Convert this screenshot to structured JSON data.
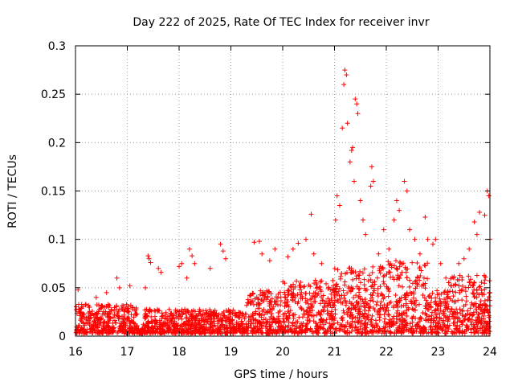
{
  "chart_data": {
    "type": "scatter",
    "title": "Day 222 of 2025, Rate Of TEC Index for receiver invr",
    "xlabel": "GPS time / hours",
    "ylabel": "ROTI / TECUs",
    "xlim": [
      16,
      24
    ],
    "ylim": [
      0,
      0.3
    ],
    "xticks": [
      16,
      17,
      18,
      19,
      20,
      21,
      22,
      23,
      24
    ],
    "yticks": [
      0,
      0.05,
      0.1,
      0.15,
      0.2,
      0.25,
      0.3
    ],
    "xtick_labels": [
      "16",
      "17",
      "18",
      "19",
      "20",
      "21",
      "22",
      "23",
      "24"
    ],
    "ytick_labels": [
      "0",
      "0.05",
      "0.1",
      "0.15",
      "0.2",
      "0.25",
      "0.3"
    ],
    "grid": true,
    "marker": "+",
    "color": "#ff0000",
    "series": [
      {
        "name": "ROTI",
        "points": [
          [
            16.05,
            0.048
          ],
          [
            16.2,
            0.033
          ],
          [
            16.4,
            0.04
          ],
          [
            16.6,
            0.045
          ],
          [
            16.8,
            0.06
          ],
          [
            16.85,
            0.05
          ],
          [
            17.05,
            0.052
          ],
          [
            17.35,
            0.05
          ],
          [
            17.4,
            0.083
          ],
          [
            17.42,
            0.08
          ],
          [
            17.45,
            0.076
          ],
          [
            17.6,
            0.07
          ],
          [
            17.65,
            0.066
          ],
          [
            18.0,
            0.072
          ],
          [
            18.05,
            0.075
          ],
          [
            18.15,
            0.06
          ],
          [
            18.2,
            0.09
          ],
          [
            18.25,
            0.083
          ],
          [
            18.3,
            0.075
          ],
          [
            18.6,
            0.07
          ],
          [
            18.8,
            0.095
          ],
          [
            18.85,
            0.088
          ],
          [
            18.9,
            0.08
          ],
          [
            19.45,
            0.097
          ],
          [
            19.55,
            0.098
          ],
          [
            19.6,
            0.085
          ],
          [
            19.75,
            0.078
          ],
          [
            19.85,
            0.09
          ],
          [
            20.1,
            0.082
          ],
          [
            20.2,
            0.09
          ],
          [
            20.3,
            0.096
          ],
          [
            20.45,
            0.1
          ],
          [
            20.55,
            0.126
          ],
          [
            20.6,
            0.085
          ],
          [
            20.75,
            0.075
          ],
          [
            21.02,
            0.12
          ],
          [
            21.05,
            0.145
          ],
          [
            21.1,
            0.135
          ],
          [
            21.15,
            0.215
          ],
          [
            21.18,
            0.26
          ],
          [
            21.2,
            0.275
          ],
          [
            21.23,
            0.27
          ],
          [
            21.25,
            0.22
          ],
          [
            21.3,
            0.18
          ],
          [
            21.33,
            0.192
          ],
          [
            21.35,
            0.195
          ],
          [
            21.38,
            0.16
          ],
          [
            21.4,
            0.245
          ],
          [
            21.43,
            0.24
          ],
          [
            21.45,
            0.23
          ],
          [
            21.5,
            0.14
          ],
          [
            21.55,
            0.12
          ],
          [
            21.6,
            0.105
          ],
          [
            21.7,
            0.155
          ],
          [
            21.72,
            0.175
          ],
          [
            21.75,
            0.16
          ],
          [
            21.85,
            0.085
          ],
          [
            21.95,
            0.11
          ],
          [
            22.05,
            0.09
          ],
          [
            22.15,
            0.12
          ],
          [
            22.2,
            0.14
          ],
          [
            22.25,
            0.13
          ],
          [
            22.35,
            0.16
          ],
          [
            22.4,
            0.15
          ],
          [
            22.45,
            0.11
          ],
          [
            22.55,
            0.1
          ],
          [
            22.65,
            0.085
          ],
          [
            22.75,
            0.123
          ],
          [
            22.8,
            0.1
          ],
          [
            22.9,
            0.095
          ],
          [
            22.95,
            0.1
          ],
          [
            23.05,
            0.075
          ],
          [
            23.15,
            0.06
          ],
          [
            23.3,
            0.06
          ],
          [
            23.4,
            0.075
          ],
          [
            23.5,
            0.08
          ],
          [
            23.6,
            0.09
          ],
          [
            23.7,
            0.118
          ],
          [
            23.75,
            0.105
          ],
          [
            23.8,
            0.128
          ],
          [
            23.9,
            0.125
          ],
          [
            23.95,
            0.15
          ],
          [
            23.98,
            0.145
          ],
          [
            24.0,
            0.1
          ]
        ]
      }
    ]
  }
}
